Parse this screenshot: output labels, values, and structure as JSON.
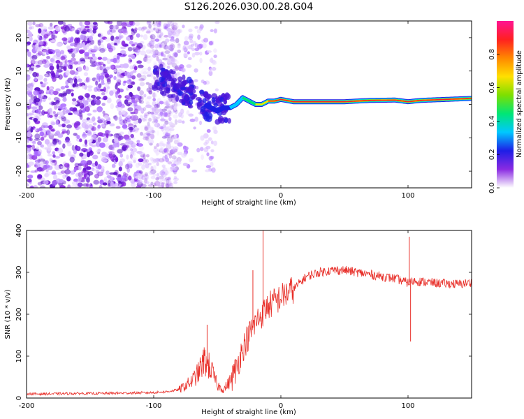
{
  "chart_data": [
    {
      "type": "heatmap",
      "title": "S126.2026.030.00.28.G04",
      "xlabel": "Height of straight line (km)",
      "ylabel": "Frequency (Hz)",
      "xlim": [
        -200,
        150
      ],
      "ylim": [
        -25,
        25
      ],
      "xticks": [
        "-200",
        "-100",
        "0",
        "100"
      ],
      "yticks": [
        "-20",
        "-10",
        "0",
        "10",
        "20"
      ],
      "colorbar": {
        "label": "Normalized spectral amplitude",
        "range": [
          0,
          1
        ],
        "ticks": [
          "0.0",
          "0.2",
          "0.4",
          "0.6",
          "0.8"
        ],
        "colors": [
          "#ffffff",
          "#8a2be2",
          "#1e1ee6",
          "#00c8ff",
          "#00e676",
          "#7ddf00",
          "#ffe000",
          "#ff8800",
          "#ff2020",
          "#ff1493"
        ]
      },
      "frequency_track": {
        "x": [
          -100,
          -90,
          -80,
          -70,
          -60,
          -50,
          -45,
          -40,
          -35,
          -30,
          -25,
          -20,
          -15,
          -10,
          -5,
          0,
          10,
          30,
          50,
          70,
          90,
          100,
          110,
          130,
          150
        ],
        "y": [
          8,
          7,
          5,
          3,
          0,
          -2,
          -1,
          -1,
          0,
          2,
          1,
          0,
          0,
          1,
          1,
          1.5,
          0.8,
          0.8,
          0.8,
          1.2,
          1.3,
          0.8,
          1.2,
          1.5,
          1.8
        ]
      }
    },
    {
      "type": "line",
      "xlabel": "Height of straight line (km)",
      "ylabel": "SNR (10 * v/v)",
      "xlim": [
        -200,
        150
      ],
      "ylim": [
        0,
        400
      ],
      "xticks": [
        "-200",
        "-100",
        "0",
        "100"
      ],
      "yticks": [
        "0",
        "100",
        "200",
        "300",
        "400"
      ],
      "color": "#e8302a",
      "series": [
        {
          "name": "SNR",
          "x": [
            -200,
            -180,
            -160,
            -140,
            -120,
            -100,
            -90,
            -80,
            -75,
            -70,
            -65,
            -60,
            -55,
            -50,
            -45,
            -40,
            -35,
            -30,
            -25,
            -20,
            -15,
            -10,
            -5,
            0,
            5,
            10,
            20,
            30,
            40,
            50,
            60,
            70,
            80,
            90,
            95,
            100,
            105,
            110,
            120,
            130,
            140,
            150
          ],
          "y": [
            10,
            10,
            11,
            11,
            12,
            13,
            15,
            20,
            30,
            40,
            60,
            90,
            70,
            30,
            20,
            40,
            70,
            120,
            150,
            180,
            200,
            220,
            230,
            240,
            250,
            260,
            290,
            300,
            305,
            305,
            300,
            295,
            290,
            285,
            280,
            275,
            280,
            278,
            275,
            273,
            272,
            275
          ]
        }
      ],
      "spikes": [
        {
          "x": -58,
          "y": 175
        },
        {
          "x": -14,
          "y": 405
        },
        {
          "x": -22,
          "y": 305
        },
        {
          "x": 101,
          "y": 385
        },
        {
          "x": 102,
          "y": 135
        }
      ]
    }
  ]
}
